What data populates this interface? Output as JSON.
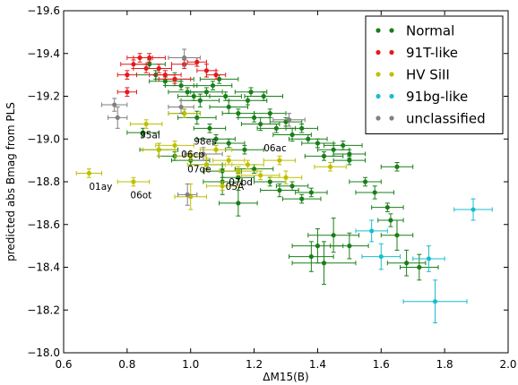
{
  "chart_data": {
    "type": "scatter",
    "title": "",
    "xlabel": "ΔM15(B)",
    "ylabel": "predicted abs Bmag from PLS",
    "xlim": [
      0.6,
      2.0
    ],
    "ylim": [
      -18.0,
      -19.6
    ],
    "y_inverted": true,
    "grid": false,
    "legend_position": "top-right",
    "x_ticks": [
      "0.6",
      "0.8",
      "1.0",
      "1.2",
      "1.4",
      "1.6",
      "1.8",
      "2.0"
    ],
    "y_ticks": [
      "−18.0",
      "−18.2",
      "−18.4",
      "−18.6",
      "−18.8",
      "−19.0",
      "−19.2",
      "−19.4",
      "−19.6"
    ],
    "colors": {
      "Normal": "#1a7f1a",
      "91T-like": "#e41a1c",
      "HV SiII": "#bfbf00",
      "91bg-like": "#17becf",
      "unclassified": "#808080"
    },
    "series": [
      {
        "name": "Normal",
        "points": [
          [
            0.87,
            -19.35,
            0.05,
            0.02
          ],
          [
            0.89,
            -19.3,
            0.06,
            0.02
          ],
          [
            0.92,
            -19.27,
            0.05,
            0.02
          ],
          [
            0.95,
            -19.28,
            0.06,
            0.03
          ],
          [
            0.97,
            -19.25,
            0.05,
            0.02
          ],
          [
            0.99,
            -19.22,
            0.06,
            0.02
          ],
          [
            1.01,
            -19.2,
            0.05,
            0.02
          ],
          [
            1.03,
            -19.18,
            0.06,
            0.03
          ],
          [
            1.05,
            -19.22,
            0.05,
            0.02
          ],
          [
            1.07,
            -19.25,
            0.06,
            0.02
          ],
          [
            1.09,
            -19.28,
            0.06,
            0.02
          ],
          [
            1.11,
            -19.2,
            0.05,
            0.02
          ],
          [
            1.12,
            -19.15,
            0.06,
            0.03
          ],
          [
            1.15,
            -19.12,
            0.05,
            0.02
          ],
          [
            1.18,
            -19.18,
            0.06,
            0.02
          ],
          [
            1.2,
            -19.1,
            0.05,
            0.02
          ],
          [
            1.22,
            -19.07,
            0.06,
            0.03
          ],
          [
            1.25,
            -19.12,
            0.05,
            0.02
          ],
          [
            1.27,
            -19.05,
            0.06,
            0.02
          ],
          [
            1.3,
            -19.08,
            0.05,
            0.02
          ],
          [
            1.32,
            -19.02,
            0.06,
            0.03
          ],
          [
            1.35,
            -19.05,
            0.05,
            0.02
          ],
          [
            1.37,
            -19.0,
            0.06,
            0.02
          ],
          [
            1.4,
            -18.98,
            0.05,
            0.02
          ],
          [
            0.85,
            -19.03,
            0.05,
            0.02
          ],
          [
            0.9,
            -18.95,
            0.06,
            0.03
          ],
          [
            0.95,
            -18.92,
            0.05,
            0.02
          ],
          [
            1.0,
            -18.9,
            0.06,
            0.02
          ],
          [
            1.05,
            -18.88,
            0.05,
            0.02
          ],
          [
            1.1,
            -18.85,
            0.06,
            0.03
          ],
          [
            1.15,
            -18.82,
            0.05,
            0.02
          ],
          [
            1.2,
            -18.86,
            0.06,
            0.02
          ],
          [
            1.25,
            -18.8,
            0.05,
            0.02
          ],
          [
            1.28,
            -18.76,
            0.06,
            0.03
          ],
          [
            1.32,
            -18.78,
            0.05,
            0.02
          ],
          [
            1.35,
            -18.72,
            0.06,
            0.02
          ],
          [
            1.38,
            -18.75,
            0.05,
            0.02
          ],
          [
            1.42,
            -18.92,
            0.06,
            0.02
          ],
          [
            1.45,
            -18.95,
            0.05,
            0.03
          ],
          [
            1.48,
            -18.97,
            0.06,
            0.02
          ],
          [
            1.5,
            -18.93,
            0.05,
            0.02
          ],
          [
            1.55,
            -18.8,
            0.05,
            0.02
          ],
          [
            1.58,
            -18.75,
            0.06,
            0.03
          ],
          [
            1.62,
            -18.68,
            0.05,
            0.02
          ],
          [
            1.63,
            -18.62,
            0.04,
            0.03
          ],
          [
            1.65,
            -18.87,
            0.05,
            0.02
          ],
          [
            1.5,
            -18.9,
            0.05,
            0.02
          ],
          [
            0.98,
            -19.12,
            0.05,
            0.02
          ],
          [
            1.02,
            -19.1,
            0.06,
            0.03
          ],
          [
            1.06,
            -19.05,
            0.05,
            0.02
          ],
          [
            1.08,
            -19.0,
            0.06,
            0.02
          ],
          [
            1.12,
            -18.98,
            0.05,
            0.02
          ],
          [
            1.17,
            -18.95,
            0.06,
            0.02
          ],
          [
            1.19,
            -19.22,
            0.05,
            0.02
          ],
          [
            1.23,
            -19.2,
            0.06,
            0.02
          ],
          [
            1.1,
            -18.8,
            0.06,
            0.06
          ],
          [
            1.15,
            -18.7,
            0.06,
            0.06
          ],
          [
            1.4,
            -18.5,
            0.08,
            0.08
          ],
          [
            1.42,
            -18.42,
            0.1,
            0.1
          ],
          [
            1.45,
            -18.55,
            0.08,
            0.08
          ],
          [
            1.38,
            -18.45,
            0.07,
            0.07
          ],
          [
            1.5,
            -18.5,
            0.06,
            0.06
          ],
          [
            1.68,
            -18.42,
            0.06,
            0.06
          ],
          [
            1.72,
            -18.4,
            0.06,
            0.06
          ],
          [
            1.65,
            -18.55,
            0.05,
            0.07
          ]
        ]
      },
      {
        "name": "91T-like",
        "points": [
          [
            0.8,
            -19.3,
            0.03,
            0.02
          ],
          [
            0.82,
            -19.35,
            0.04,
            0.02
          ],
          [
            0.84,
            -19.38,
            0.04,
            0.02
          ],
          [
            0.86,
            -19.33,
            0.04,
            0.02
          ],
          [
            0.9,
            -19.33,
            0.04,
            0.02
          ],
          [
            0.92,
            -19.3,
            0.05,
            0.02
          ],
          [
            0.95,
            -19.28,
            0.05,
            0.02
          ],
          [
            0.98,
            -19.35,
            0.04,
            0.02
          ],
          [
            0.8,
            -19.22,
            0.03,
            0.02
          ],
          [
            1.02,
            -19.36,
            0.03,
            0.02
          ],
          [
            1.05,
            -19.32,
            0.03,
            0.03
          ],
          [
            0.87,
            -19.38,
            0.05,
            0.02
          ],
          [
            1.08,
            -19.3,
            0.03,
            0.02
          ]
        ]
      },
      {
        "name": "HV SiII",
        "points": [
          [
            0.68,
            -18.84,
            0.04,
            0.02
          ],
          [
            0.82,
            -18.8,
            0.05,
            0.02
          ],
          [
            0.9,
            -18.95,
            0.05,
            0.03
          ],
          [
            0.95,
            -18.97,
            0.06,
            0.02
          ],
          [
            1.0,
            -18.92,
            0.05,
            0.02
          ],
          [
            1.05,
            -18.88,
            0.06,
            0.03
          ],
          [
            1.08,
            -18.95,
            0.05,
            0.02
          ],
          [
            1.12,
            -18.9,
            0.05,
            0.02
          ],
          [
            1.15,
            -18.85,
            0.06,
            0.02
          ],
          [
            1.18,
            -18.88,
            0.05,
            0.02
          ],
          [
            1.22,
            -18.83,
            0.06,
            0.02
          ],
          [
            1.28,
            -18.9,
            0.05,
            0.02
          ],
          [
            1.3,
            -18.82,
            0.05,
            0.03
          ],
          [
            1.44,
            -18.87,
            0.05,
            0.02
          ],
          [
            0.86,
            -19.07,
            0.05,
            0.02
          ],
          [
            1.0,
            -18.73,
            0.05,
            0.06
          ],
          [
            0.98,
            -19.12,
            0.05,
            0.02
          ],
          [
            1.1,
            -18.78,
            0.05,
            0.02
          ]
        ]
      },
      {
        "name": "91bg-like",
        "points": [
          [
            1.89,
            -18.67,
            0.06,
            0.05
          ],
          [
            1.57,
            -18.57,
            0.05,
            0.05
          ],
          [
            1.6,
            -18.45,
            0.06,
            0.06
          ],
          [
            1.75,
            -18.44,
            0.05,
            0.06
          ],
          [
            1.77,
            -18.24,
            0.1,
            0.1
          ]
        ]
      },
      {
        "name": "unclassified",
        "points": [
          [
            0.76,
            -19.16,
            0.04,
            0.03
          ],
          [
            0.77,
            -19.1,
            0.03,
            0.05
          ],
          [
            0.98,
            -19.38,
            0.05,
            0.04
          ],
          [
            0.99,
            -18.74,
            0.03,
            0.05
          ],
          [
            1.04,
            -18.93,
            0.06,
            0.03
          ],
          [
            1.31,
            -19.09,
            0.05,
            0.03
          ],
          [
            0.97,
            -19.15,
            0.04,
            0.03
          ]
        ]
      }
    ],
    "annotations": [
      {
        "text": "95al",
        "x": 0.84,
        "y": -19.02
      },
      {
        "text": "98es",
        "x": 1.01,
        "y": -18.99
      },
      {
        "text": "06cp",
        "x": 0.97,
        "y": -18.93
      },
      {
        "text": "06ac",
        "x": 1.23,
        "y": -18.96
      },
      {
        "text": "07qe",
        "x": 0.99,
        "y": -18.86
      },
      {
        "text": "07bd",
        "x": 1.12,
        "y": -18.8
      },
      {
        "text": "05A",
        "x": 1.11,
        "y": -18.78
      },
      {
        "text": "01ay",
        "x": 0.68,
        "y": -18.78
      },
      {
        "text": "06ot",
        "x": 0.81,
        "y": -18.74
      }
    ]
  }
}
